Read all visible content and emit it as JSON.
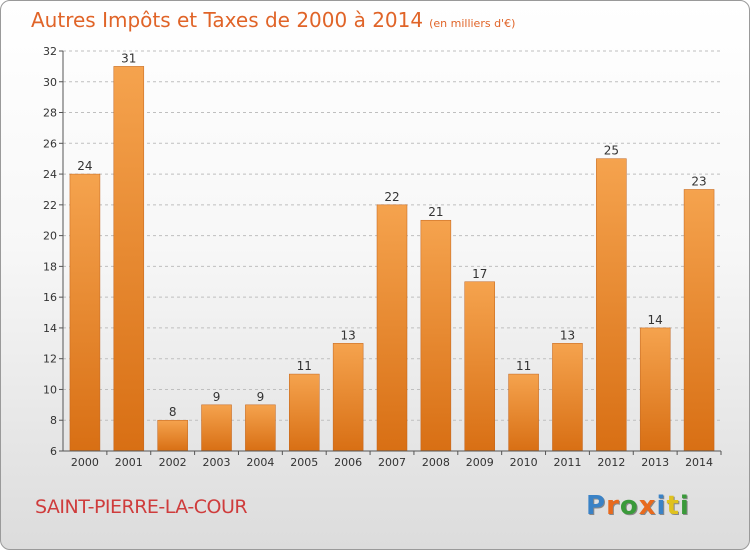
{
  "header": {
    "title": "Autres Impôts et Taxes de 2000 à 2014",
    "unit": "(en milliers d'€)"
  },
  "footer": {
    "city": "SAINT-PIERRE-LA-COUR",
    "logo": {
      "text": "Proxiti",
      "letter_colors": [
        "#3a82c6",
        "#e86a1e",
        "#3a9a3a",
        "#e86a1e",
        "#3a82c6",
        "#e0c21e",
        "#3a9a3a"
      ]
    }
  },
  "colors": {
    "bar_light": "#f5a34e",
    "bar_dark": "#d86f14",
    "grid": "#bfbfbf",
    "axis": "#555555",
    "text": "#333333"
  },
  "chart_data": {
    "type": "bar",
    "title": "Autres Impôts et Taxes de 2000 à 2014",
    "subtitle": "(en milliers d'€)",
    "categories": [
      "2000",
      "2001",
      "2002",
      "2003",
      "2004",
      "2005",
      "2006",
      "2007",
      "2008",
      "2009",
      "2010",
      "2011",
      "2012",
      "2013",
      "2014"
    ],
    "values": [
      24,
      31,
      8,
      9,
      9,
      11,
      13,
      22,
      21,
      17,
      11,
      13,
      25,
      14,
      23
    ],
    "ylim": [
      6,
      32
    ],
    "yticks": [
      6,
      8,
      10,
      12,
      14,
      16,
      18,
      20,
      22,
      24,
      26,
      28,
      30,
      32
    ],
    "grid": "horizontal dashed",
    "xlabel": "",
    "ylabel": ""
  }
}
